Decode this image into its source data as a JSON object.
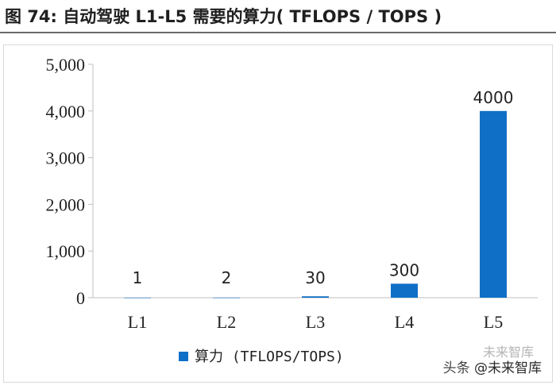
{
  "header": {
    "title": "图 74: 自动驾驶 L1-L5 需要的算力( TFLOPS / TOPS )"
  },
  "watermark": {
    "upper": "未来智库",
    "prefix": "头条",
    "handle": "@未来智库"
  },
  "colors": {
    "bar": "#0f6fc6",
    "axis": "#bfbfbf",
    "text": "#222222"
  },
  "chart_data": {
    "type": "bar",
    "title": "",
    "xlabel": "",
    "ylabel": "",
    "categories": [
      "L1",
      "L2",
      "L3",
      "L4",
      "L5"
    ],
    "series": [
      {
        "name": "算力 (TFLOPS/TOPS)",
        "values": [
          1,
          2,
          30,
          300,
          4000
        ]
      }
    ],
    "data_labels": [
      "1",
      "2",
      "30",
      "300",
      "4000"
    ],
    "y_ticks": [
      "0",
      "1,000",
      "2,000",
      "3,000",
      "4,000",
      "5,000"
    ],
    "ylim": [
      0,
      5000
    ],
    "grid": false,
    "legend_position": "bottom"
  }
}
